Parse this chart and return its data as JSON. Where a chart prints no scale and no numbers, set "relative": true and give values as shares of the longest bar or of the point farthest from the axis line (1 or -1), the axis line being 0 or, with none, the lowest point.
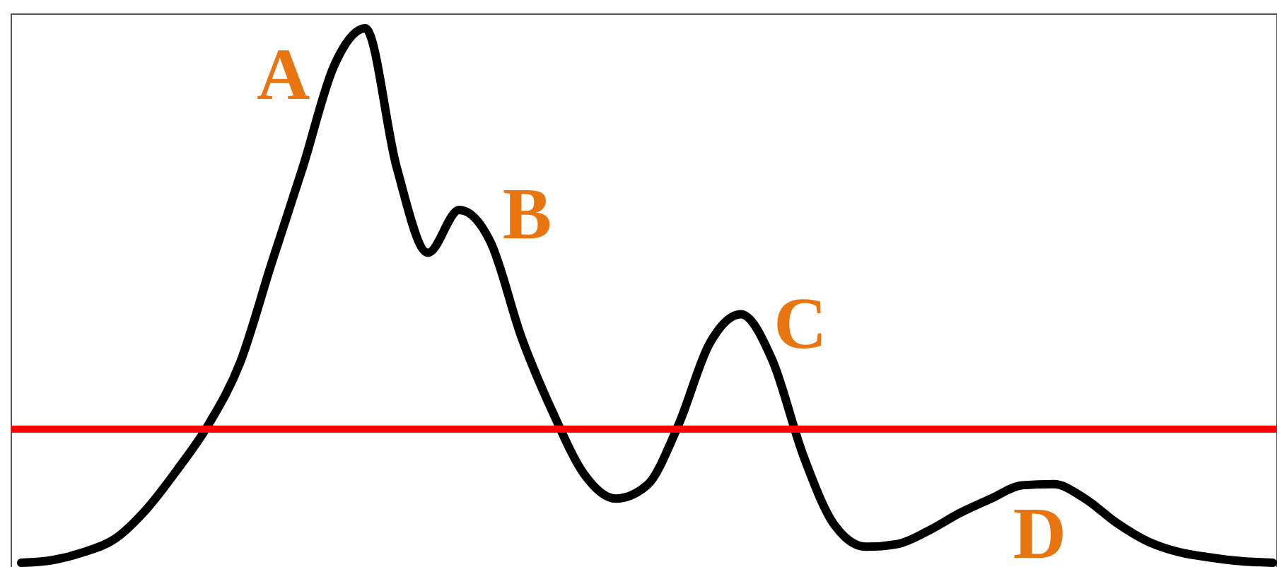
{
  "chart_data": {
    "type": "line",
    "relative": true,
    "categories": [
      null,
      null,
      null,
      null,
      null,
      null,
      null,
      null,
      null,
      null,
      null,
      null,
      null,
      null,
      null,
      null,
      null,
      null,
      null,
      null,
      null,
      null,
      null,
      null,
      null,
      null,
      null,
      null,
      null,
      null,
      null,
      null,
      null,
      null,
      null,
      null,
      null,
      null,
      null,
      null,
      null
    ],
    "series": [
      {
        "color": "#000000",
        "values": [
          0,
          0.005,
          0.02,
          0.045,
          0.1,
          0.175,
          0.26,
          0.375,
          0.56,
          0.74,
          0.93,
          1,
          0.74,
          0.58,
          0.66,
          0.6,
          0.42,
          0.28,
          0.165,
          0.12,
          0.145,
          0.257,
          0.41,
          0.465,
          0.38,
          0.2,
          0.07,
          0.03,
          0.035,
          0.06,
          0.093,
          0.12,
          0.145,
          0.147,
          0.12,
          0.075,
          0.04,
          0.02,
          0.01,
          0.003,
          0
        ]
      }
    ],
    "ref_lines": [
      {
        "axis": "y",
        "value": 0.25,
        "color": "#ff0000"
      }
    ],
    "annotations": [
      "A",
      "B",
      "C",
      "D"
    ]
  }
}
